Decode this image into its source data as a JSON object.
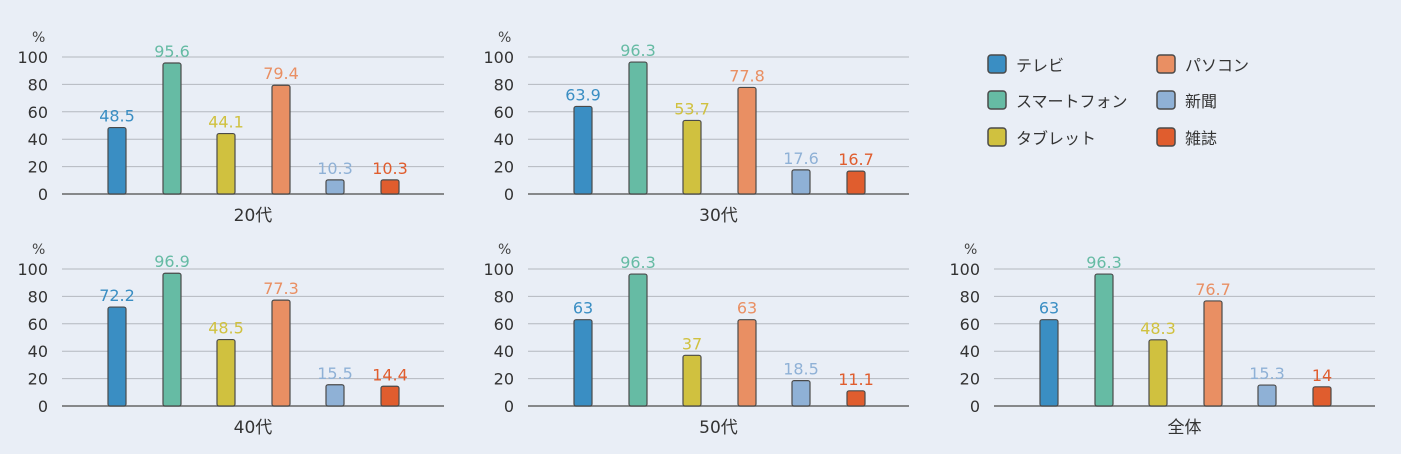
{
  "legend": [
    {
      "label": "テレビ",
      "color": "#3a8ec3"
    },
    {
      "label": "パソコン",
      "color": "#e98f63"
    },
    {
      "label": "スマートフォン",
      "color": "#66bba4"
    },
    {
      "label": "新聞",
      "color": "#8fb1d6"
    },
    {
      "label": "タブレット",
      "color": "#d0c13f"
    },
    {
      "label": "雑誌",
      "color": "#e05d2e"
    }
  ],
  "chart_data": [
    {
      "type": "bar",
      "xlabel": "20代",
      "ylabel": "%",
      "ylim": [
        0,
        100
      ],
      "yticks": [
        0,
        20,
        40,
        60,
        80,
        100
      ],
      "categories": [
        "テレビ",
        "スマートフォン",
        "タブレット",
        "パソコン",
        "新聞",
        "雑誌"
      ],
      "values": [
        48.5,
        95.6,
        44.1,
        79.4,
        10.3,
        10.3
      ],
      "value_labels": [
        "48.5",
        "95.6",
        "44.1",
        "79.4",
        "10.3",
        "10.3"
      ],
      "colors": [
        "#3a8ec3",
        "#66bba4",
        "#d0c13f",
        "#e98f63",
        "#8fb1d6",
        "#e05d2e"
      ]
    },
    {
      "type": "bar",
      "xlabel": "30代",
      "ylabel": "%",
      "ylim": [
        0,
        100
      ],
      "yticks": [
        0,
        20,
        40,
        60,
        80,
        100
      ],
      "categories": [
        "テレビ",
        "スマートフォン",
        "タブレット",
        "パソコン",
        "新聞",
        "雑誌"
      ],
      "values": [
        63.9,
        96.3,
        53.7,
        77.8,
        17.6,
        16.7
      ],
      "value_labels": [
        "63.9",
        "96.3",
        "53.7",
        "77.8",
        "17.6",
        "16.7"
      ],
      "colors": [
        "#3a8ec3",
        "#66bba4",
        "#d0c13f",
        "#e98f63",
        "#8fb1d6",
        "#e05d2e"
      ]
    },
    {
      "type": "bar",
      "xlabel": "40代",
      "ylabel": "%",
      "ylim": [
        0,
        100
      ],
      "yticks": [
        0,
        20,
        40,
        60,
        80,
        100
      ],
      "categories": [
        "テレビ",
        "スマートフォン",
        "タブレット",
        "パソコン",
        "新聞",
        "雑誌"
      ],
      "values": [
        72.2,
        96.9,
        48.5,
        77.3,
        15.5,
        14.4
      ],
      "value_labels": [
        "72.2",
        "96.9",
        "48.5",
        "77.3",
        "15.5",
        "14.4"
      ],
      "colors": [
        "#3a8ec3",
        "#66bba4",
        "#d0c13f",
        "#e98f63",
        "#8fb1d6",
        "#e05d2e"
      ]
    },
    {
      "type": "bar",
      "xlabel": "50代",
      "ylabel": "%",
      "ylim": [
        0,
        100
      ],
      "yticks": [
        0,
        20,
        40,
        60,
        80,
        100
      ],
      "categories": [
        "テレビ",
        "スマートフォン",
        "タブレット",
        "パソコン",
        "新聞",
        "雑誌"
      ],
      "values": [
        63,
        96.3,
        37,
        63,
        18.5,
        11.1
      ],
      "value_labels": [
        "63",
        "96.3",
        "37",
        "63",
        "18.5",
        "11.1"
      ],
      "colors": [
        "#3a8ec3",
        "#66bba4",
        "#d0c13f",
        "#e98f63",
        "#8fb1d6",
        "#e05d2e"
      ]
    },
    {
      "type": "bar",
      "xlabel": "全体",
      "ylabel": "%",
      "ylim": [
        0,
        100
      ],
      "yticks": [
        0,
        20,
        40,
        60,
        80,
        100
      ],
      "categories": [
        "テレビ",
        "スマートフォン",
        "タブレット",
        "パソコン",
        "新聞",
        "雑誌"
      ],
      "values": [
        63,
        96.3,
        48.3,
        76.7,
        15.3,
        14
      ],
      "value_labels": [
        "63",
        "96.3",
        "48.3",
        "76.7",
        "15.3",
        "14"
      ],
      "colors": [
        "#3a8ec3",
        "#66bba4",
        "#d0c13f",
        "#e98f63",
        "#8fb1d6",
        "#e05d2e"
      ]
    }
  ]
}
